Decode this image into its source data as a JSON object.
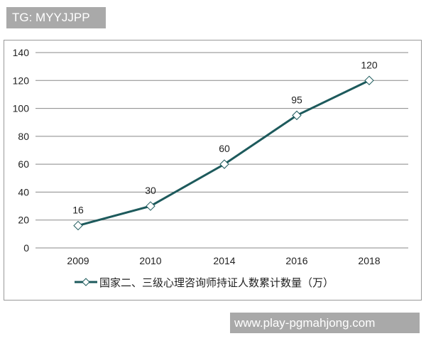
{
  "watermarks": {
    "top": "TG: MYYJJPP",
    "bottom": "www.play-pgmahjong.com"
  },
  "colors": {
    "line": "#1d5a5c",
    "grid": "#888888",
    "watermark_bg": "#a9a9a9"
  },
  "chart_data": {
    "type": "line",
    "title": "",
    "xlabel": "",
    "ylabel": "",
    "categories": [
      "2009",
      "2010",
      "2014",
      "2016",
      "2018"
    ],
    "series": [
      {
        "name": "国家二、三级心理咨询师持证人数累计数量（万）",
        "values": [
          16,
          30,
          60,
          95,
          120
        ],
        "marker": "diamond"
      }
    ],
    "ylim": [
      0,
      140
    ],
    "yticks": [
      0,
      20,
      40,
      60,
      80,
      100,
      120,
      140
    ],
    "grid": true,
    "legend": "bottom",
    "data_labels": true
  }
}
